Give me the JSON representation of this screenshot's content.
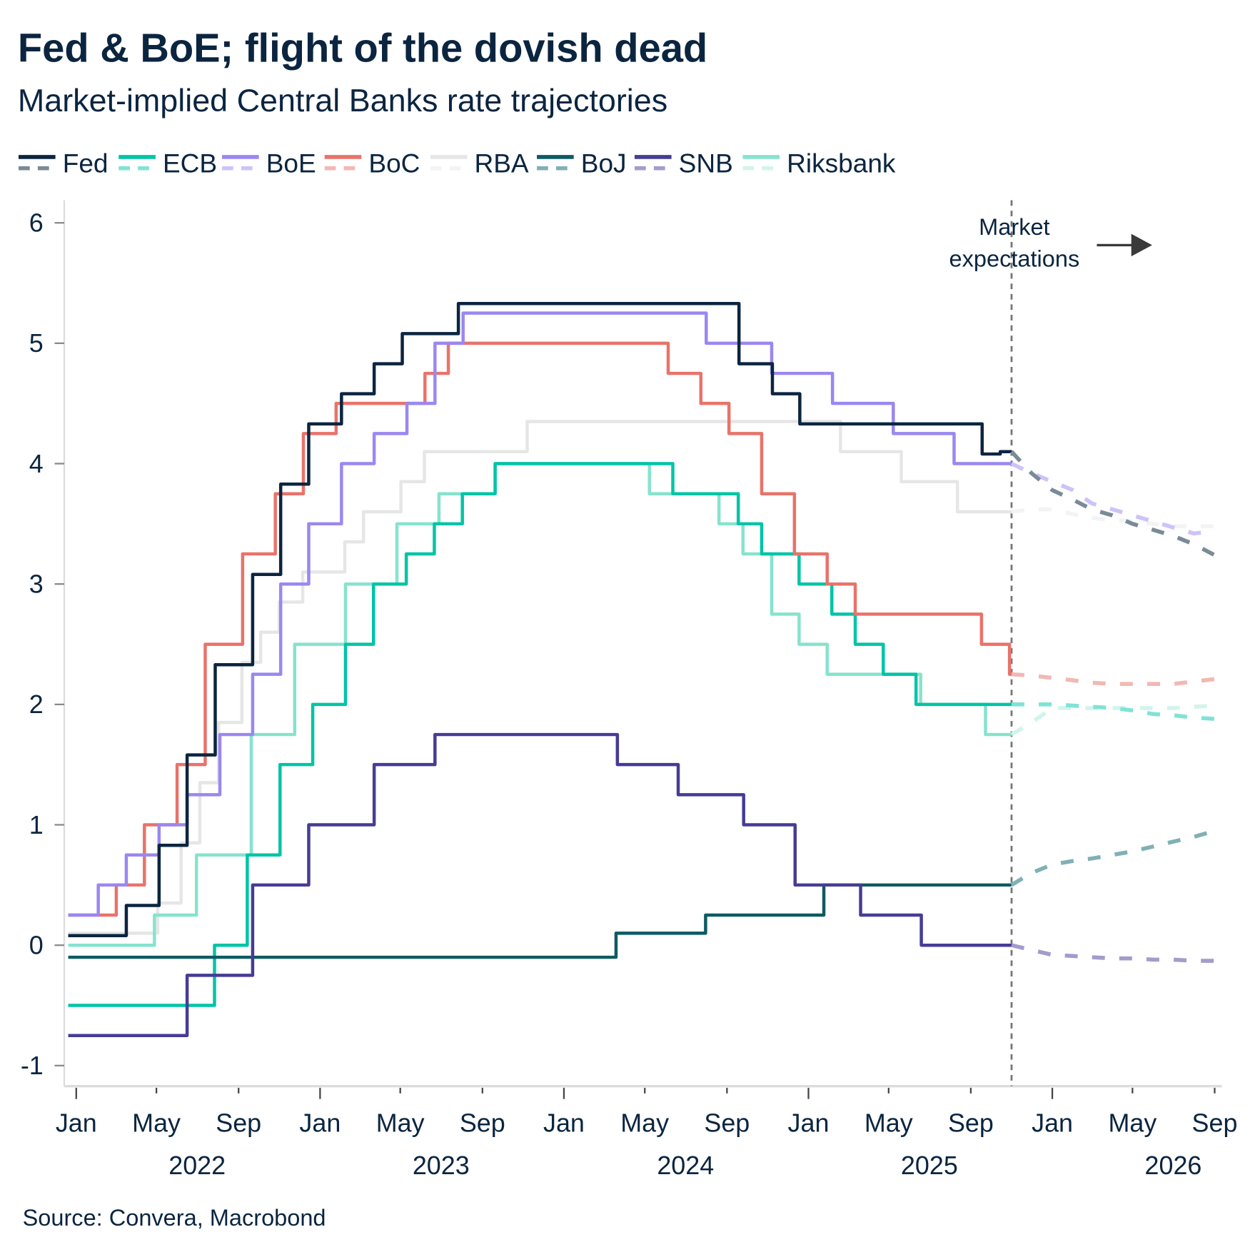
{
  "chart_data": {
    "type": "line",
    "title": "Fed & BoE; flight of the dovish dead",
    "subtitle": "Market-implied Central Banks rate trajectories",
    "source": "Source: Convera, Macrobond",
    "annotation": [
      "Market",
      "expectations"
    ],
    "annotation_date": "2025-11-01",
    "legend_placement": "top-left",
    "grid": false,
    "ylim": [
      -1.3,
      6.2
    ],
    "xlim": [
      "2021-12-20",
      "2026-09-10"
    ],
    "y_ticks": [
      "-1",
      "0",
      "1",
      "2",
      "3",
      "4",
      "5",
      "6"
    ],
    "x_ticks": [
      {
        "date": "2022-01-01",
        "label": "Jan"
      },
      {
        "date": "2022-05-01",
        "label": "May"
      },
      {
        "date": "2022-09-01",
        "label": "Sep"
      },
      {
        "date": "2023-01-01",
        "label": "Jan"
      },
      {
        "date": "2023-05-01",
        "label": "May"
      },
      {
        "date": "2023-09-01",
        "label": "Sep"
      },
      {
        "date": "2024-01-01",
        "label": "Jan"
      },
      {
        "date": "2024-05-01",
        "label": "May"
      },
      {
        "date": "2024-09-01",
        "label": "Sep"
      },
      {
        "date": "2025-01-01",
        "label": "Jan"
      },
      {
        "date": "2025-05-01",
        "label": "May"
      },
      {
        "date": "2025-09-01",
        "label": "Sep"
      },
      {
        "date": "2026-01-01",
        "label": "Jan"
      },
      {
        "date": "2026-05-01",
        "label": "May"
      },
      {
        "date": "2026-09-01",
        "label": "Sep"
      }
    ],
    "year_labels": [
      {
        "date": "2022-07-01",
        "label": "2022"
      },
      {
        "date": "2023-07-01",
        "label": "2023"
      },
      {
        "date": "2024-07-01",
        "label": "2024"
      },
      {
        "date": "2025-07-01",
        "label": "2025"
      },
      {
        "date": "2026-07-01",
        "label": "2026"
      }
    ],
    "forecast_dates": [
      "2025-11-01",
      "2025-12-01",
      "2026-01-01",
      "2026-02-01",
      "2026-03-01",
      "2026-04-01",
      "2026-05-01",
      "2026-06-01",
      "2026-07-01",
      "2026-08-01",
      "2026-09-01"
    ],
    "series": [
      {
        "name": "Fed",
        "color": "#0b2540",
        "forecast_color": "#7a8b97",
        "start": 0.08,
        "steps": [
          [
            "2022-03-17",
            0.33
          ],
          [
            "2022-05-05",
            0.83
          ],
          [
            "2022-06-16",
            1.58
          ],
          [
            "2022-07-28",
            2.33
          ],
          [
            "2022-09-22",
            3.08
          ],
          [
            "2022-11-03",
            3.83
          ],
          [
            "2022-12-15",
            4.33
          ],
          [
            "2023-02-02",
            4.58
          ],
          [
            "2023-03-23",
            4.83
          ],
          [
            "2023-05-04",
            5.08
          ],
          [
            "2023-07-27",
            5.33
          ],
          [
            "2024-09-19",
            4.83
          ],
          [
            "2024-11-08",
            4.58
          ],
          [
            "2024-12-19",
            4.33
          ],
          [
            "2025-09-18",
            4.08
          ],
          [
            "2025-10-15",
            4.1
          ]
        ],
        "forecast": [
          4.1,
          3.92,
          3.78,
          3.7,
          3.62,
          3.57,
          3.5,
          3.45,
          3.4,
          3.33,
          3.24
        ]
      },
      {
        "name": "ECB",
        "color": "#00c4a7",
        "forecast_color": "#7fe3d5",
        "start": -0.5,
        "steps": [
          [
            "2022-07-27",
            0.0
          ],
          [
            "2022-09-14",
            0.75
          ],
          [
            "2022-11-02",
            1.5
          ],
          [
            "2022-12-21",
            2.0
          ],
          [
            "2023-02-08",
            2.5
          ],
          [
            "2023-03-22",
            3.0
          ],
          [
            "2023-05-10",
            3.25
          ],
          [
            "2023-06-21",
            3.5
          ],
          [
            "2023-08-02",
            3.75
          ],
          [
            "2023-09-20",
            4.0
          ],
          [
            "2024-06-12",
            3.75
          ],
          [
            "2024-09-18",
            3.5
          ],
          [
            "2024-10-23",
            3.25
          ],
          [
            "2024-12-18",
            3.0
          ],
          [
            "2025-02-05",
            2.75
          ],
          [
            "2025-03-12",
            2.5
          ],
          [
            "2025-04-23",
            2.25
          ],
          [
            "2025-06-11",
            2.0
          ]
        ],
        "forecast": [
          2.0,
          2.0,
          2.0,
          1.99,
          1.98,
          1.97,
          1.95,
          1.92,
          1.91,
          1.89,
          1.88
        ]
      },
      {
        "name": "BoE",
        "color": "#9b87f0",
        "forecast_color": "#cdc3fa",
        "start": 0.25,
        "steps": [
          [
            "2022-02-03",
            0.5
          ],
          [
            "2022-03-17",
            0.75
          ],
          [
            "2022-05-05",
            1.0
          ],
          [
            "2022-06-16",
            1.25
          ],
          [
            "2022-08-04",
            1.75
          ],
          [
            "2022-09-22",
            2.25
          ],
          [
            "2022-11-03",
            3.0
          ],
          [
            "2022-12-15",
            3.5
          ],
          [
            "2023-02-02",
            4.0
          ],
          [
            "2023-03-23",
            4.25
          ],
          [
            "2023-05-11",
            4.5
          ],
          [
            "2023-06-22",
            5.0
          ],
          [
            "2023-08-03",
            5.25
          ],
          [
            "2024-08-01",
            5.0
          ],
          [
            "2024-11-07",
            4.75
          ],
          [
            "2025-02-06",
            4.5
          ],
          [
            "2025-05-08",
            4.25
          ],
          [
            "2025-08-07",
            4.0
          ]
        ],
        "forecast": [
          4.0,
          3.92,
          3.85,
          3.78,
          3.67,
          3.62,
          3.57,
          3.52,
          3.47,
          3.42,
          3.44
        ]
      },
      {
        "name": "BoC",
        "color": "#e8736a",
        "forecast_color": "#f2b8b3",
        "start": 0.25,
        "steps": [
          [
            "2022-03-02",
            0.5
          ],
          [
            "2022-04-13",
            1.0
          ],
          [
            "2022-06-01",
            1.5
          ],
          [
            "2022-07-13",
            2.5
          ],
          [
            "2022-09-07",
            3.25
          ],
          [
            "2022-10-26",
            3.75
          ],
          [
            "2022-12-07",
            4.25
          ],
          [
            "2023-01-25",
            4.5
          ],
          [
            "2023-06-07",
            4.75
          ],
          [
            "2023-07-12",
            5.0
          ],
          [
            "2024-06-05",
            4.75
          ],
          [
            "2024-07-24",
            4.5
          ],
          [
            "2024-09-04",
            4.25
          ],
          [
            "2024-10-23",
            3.75
          ],
          [
            "2024-12-11",
            3.25
          ],
          [
            "2025-01-29",
            3.0
          ],
          [
            "2025-03-12",
            2.75
          ],
          [
            "2025-09-17",
            2.5
          ],
          [
            "2025-10-29",
            2.25
          ]
        ],
        "forecast": [
          2.25,
          2.24,
          2.22,
          2.2,
          2.18,
          2.17,
          2.17,
          2.17,
          2.17,
          2.19,
          2.21
        ]
      },
      {
        "name": "RBA",
        "color": "#e6e6e6",
        "forecast_color": "#f3f3f3",
        "start": 0.1,
        "steps": [
          [
            "2022-05-03",
            0.35
          ],
          [
            "2022-06-07",
            0.85
          ],
          [
            "2022-07-05",
            1.35
          ],
          [
            "2022-08-02",
            1.85
          ],
          [
            "2022-09-06",
            2.35
          ],
          [
            "2022-10-04",
            2.6
          ],
          [
            "2022-11-01",
            2.85
          ],
          [
            "2022-12-06",
            3.1
          ],
          [
            "2023-02-07",
            3.35
          ],
          [
            "2023-03-07",
            3.6
          ],
          [
            "2023-05-02",
            3.85
          ],
          [
            "2023-06-06",
            4.1
          ],
          [
            "2023-11-07",
            4.35
          ],
          [
            "2025-02-18",
            4.1
          ],
          [
            "2025-05-20",
            3.85
          ],
          [
            "2025-08-12",
            3.6
          ]
        ],
        "forecast": [
          3.6,
          3.62,
          3.62,
          3.58,
          3.55,
          3.53,
          3.52,
          3.5,
          3.48,
          3.48,
          3.48
        ]
      },
      {
        "name": "BoJ",
        "color": "#0d5a63",
        "forecast_color": "#80b0b5",
        "start": -0.1,
        "steps": [
          [
            "2024-03-19",
            0.1
          ],
          [
            "2024-07-31",
            0.25
          ],
          [
            "2025-01-24",
            0.5
          ]
        ],
        "forecast": [
          0.5,
          0.6,
          0.67,
          0.7,
          0.72,
          0.75,
          0.78,
          0.82,
          0.86,
          0.9,
          0.95
        ]
      },
      {
        "name": "SNB",
        "color": "#463c96",
        "forecast_color": "#a39ccb",
        "start": -0.75,
        "steps": [
          [
            "2022-06-16",
            -0.25
          ],
          [
            "2022-09-22",
            0.5
          ],
          [
            "2022-12-15",
            1.0
          ],
          [
            "2023-03-23",
            1.5
          ],
          [
            "2023-06-22",
            1.75
          ],
          [
            "2024-03-21",
            1.5
          ],
          [
            "2024-06-20",
            1.25
          ],
          [
            "2024-09-26",
            1.0
          ],
          [
            "2024-12-12",
            0.5
          ],
          [
            "2025-03-20",
            0.25
          ],
          [
            "2025-06-19",
            0.0
          ]
        ],
        "forecast": [
          0.0,
          -0.04,
          -0.08,
          -0.09,
          -0.1,
          -0.11,
          -0.11,
          -0.12,
          -0.12,
          -0.13,
          -0.13
        ]
      },
      {
        "name": "Riksbank",
        "color": "#86e3cd",
        "forecast_color": "#d2f4ec",
        "start": 0.0,
        "steps": [
          [
            "2022-04-28",
            0.25
          ],
          [
            "2022-06-30",
            0.75
          ],
          [
            "2022-09-20",
            1.75
          ],
          [
            "2022-11-24",
            2.5
          ],
          [
            "2023-02-08",
            3.0
          ],
          [
            "2023-04-26",
            3.5
          ],
          [
            "2023-06-28",
            3.75
          ],
          [
            "2023-09-20",
            4.0
          ],
          [
            "2024-05-08",
            3.75
          ],
          [
            "2024-08-20",
            3.5
          ],
          [
            "2024-09-25",
            3.25
          ],
          [
            "2024-11-07",
            2.75
          ],
          [
            "2024-12-18",
            2.5
          ],
          [
            "2025-01-29",
            2.25
          ],
          [
            "2025-06-18",
            2.0
          ],
          [
            "2025-09-23",
            1.75
          ]
        ],
        "forecast": [
          1.75,
          1.85,
          1.97,
          1.97,
          1.97,
          1.97,
          1.97,
          1.97,
          1.97,
          1.98,
          1.99
        ]
      }
    ]
  }
}
